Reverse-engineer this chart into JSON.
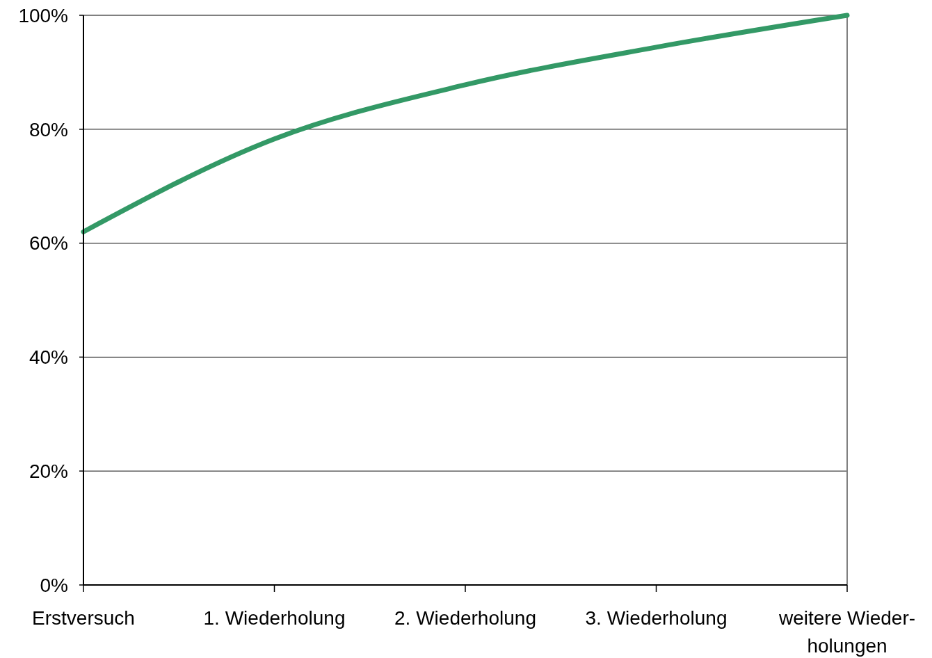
{
  "chart_data": {
    "type": "line",
    "categories": [
      "Erstversuch",
      "1. Wiederholung",
      "2. Wiederholung",
      "3. Wiederholung",
      "weitere Wieder-\nholungen"
    ],
    "series": [
      {
        "color": "#339966",
        "values": [
          62,
          78.3,
          87.8,
          94.4,
          100
        ]
      }
    ],
    "ylim": [
      0,
      100
    ],
    "yticks": [
      {
        "value": 0,
        "label": "0%"
      },
      {
        "value": 20,
        "label": "20%"
      },
      {
        "value": 40,
        "label": "40%"
      },
      {
        "value": 60,
        "label": "60%"
      },
      {
        "value": 80,
        "label": "80%"
      },
      {
        "value": 100,
        "label": "100%"
      }
    ],
    "grid": "y",
    "marker": "none",
    "line_style": "solid"
  }
}
